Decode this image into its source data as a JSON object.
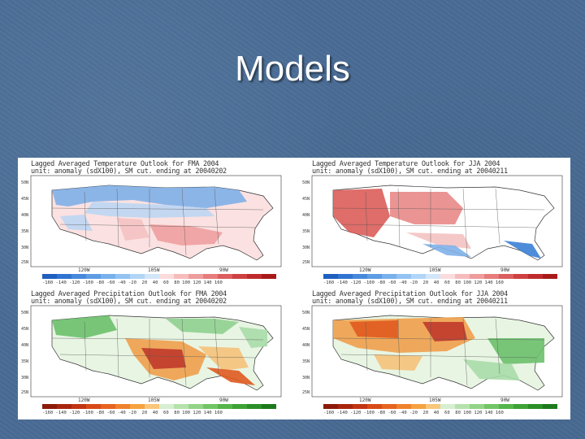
{
  "slide": {
    "title": "Models"
  },
  "panels": [
    {
      "title_line1": "Lagged Averaged Temperature Outlook for FMA 2004",
      "title_line2": "unit: anomaly (sdX100), SM cut. ending at 20040202",
      "lats": [
        "50N",
        "45N",
        "40N",
        "35N",
        "30N",
        "25N"
      ],
      "lons": [
        "120W",
        "105W",
        "90W"
      ],
      "colorbar_labels": "-160 -140 -120 -100 -80 -60 -40 -20  20  40  60  80 100 120 140 160",
      "colors": {
        "cool": "#3a7fd5",
        "warm": "#d9534f"
      }
    },
    {
      "title_line1": "Lagged Averaged Temperature Outlook for JJA 2004",
      "title_line2": "unit: anomaly (sdX100), SM cut. ending at 20040211",
      "lats": [
        "50N",
        "45N",
        "40N",
        "35N",
        "30N",
        "25N"
      ],
      "lons": [
        "120W",
        "105W",
        "90W"
      ],
      "colorbar_labels": "-160 -140 -120 -100 -80 -60 -40 -20  20  40  60  80 100 120 140 160",
      "colors": {
        "cool": "#3a7fd5",
        "warm": "#c9302c"
      }
    },
    {
      "title_line1": "Lagged Averaged Precipitation Outlook for FMA 2004",
      "title_line2": "unit: anomaly (sdX100), SM cut. ending at 20040202",
      "lats": [
        "50N",
        "45N",
        "40N",
        "35N",
        "30N",
        "25N"
      ],
      "lons": [
        "120W",
        "105W",
        "90W"
      ],
      "colorbar_labels": "-160 -140 -120 -100 -80 -60 -40 -20  20  40  60  80 100 120 140 160",
      "colors": {
        "dry": "#d2691e",
        "wet": "#4caf50"
      }
    },
    {
      "title_line1": "Lagged Averaged Precipitation Outlook for JJA 2004",
      "title_line2": "unit: anomaly (sdX100), SM cut. ending at 20040211",
      "lats": [
        "50N",
        "45N",
        "40N",
        "35N",
        "30N",
        "25N"
      ],
      "lons": [
        "120W",
        "105W",
        "90W"
      ],
      "colorbar_labels": "-160 -140 -120 -100 -80 -60 -40 -20  20  40  60  80 100 120 140 160",
      "colors": {
        "dry": "#d2691e",
        "wet": "#4caf50"
      }
    }
  ]
}
